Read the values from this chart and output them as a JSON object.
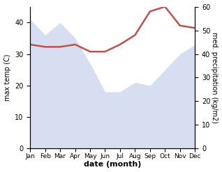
{
  "months": [
    "Jan",
    "Feb",
    "Mar",
    "Apr",
    "May",
    "Jun",
    "Jul",
    "Aug",
    "Sep",
    "Oct",
    "Nov",
    "Dec"
  ],
  "temp": [
    41,
    36,
    40,
    35,
    27,
    18,
    18,
    21,
    20,
    25,
    30,
    33
  ],
  "precip": [
    44,
    43,
    43,
    44,
    41,
    41,
    44,
    48,
    58,
    60,
    52,
    51
  ],
  "fill_color": "#b8c4e8",
  "precip_color": "#c0504d",
  "left_label": "max temp (C)",
  "right_label": "med. precipitation (kg/m2)",
  "xlabel": "date (month)",
  "ylim_left": [
    0,
    45
  ],
  "ylim_right": [
    0,
    60
  ],
  "yticks_left": [
    0,
    10,
    20,
    30,
    40
  ],
  "yticks_right": [
    0,
    10,
    20,
    30,
    40,
    50,
    60
  ],
  "bg_color": "#ffffff"
}
